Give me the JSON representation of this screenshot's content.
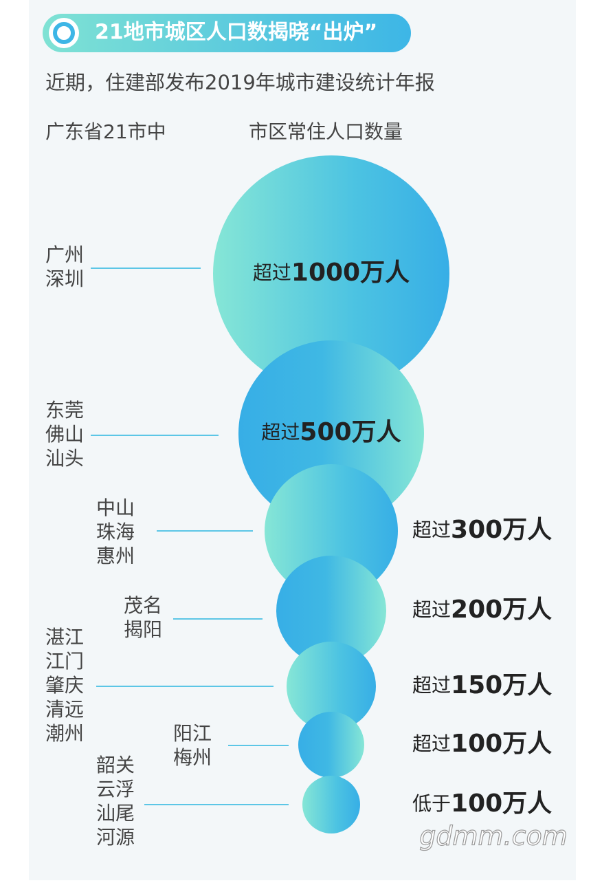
{
  "header": {
    "title": "21地市城区人口数揭晓“出炉”",
    "intro": "近期，住建部发布2019年城市建设统计年报",
    "left_heading": "广东省21市中",
    "right_heading": "市区常住人口数量"
  },
  "tiers": [
    {
      "cities": [
        "广州",
        "深圳"
      ],
      "prefix": "超过",
      "amount": "1000万人"
    },
    {
      "cities": [
        "东莞",
        "佛山",
        "汕头"
      ],
      "prefix": "超过",
      "amount": "500万人"
    },
    {
      "cities": [
        "中山",
        "珠海",
        "惠州"
      ],
      "prefix": "超过",
      "amount": "300万人"
    },
    {
      "cities": [
        "茂名",
        "揭阳"
      ],
      "prefix": "超过",
      "amount": "200万人"
    },
    {
      "cities": [
        "湛江",
        "江门",
        "肇庆",
        "清远",
        "潮州"
      ],
      "prefix": "超过",
      "amount": "150万人"
    },
    {
      "cities": [
        "阳江",
        "梅州"
      ],
      "prefix": "超过",
      "amount": "100万人"
    },
    {
      "cities": [
        "韶关",
        "云浮",
        "汕尾",
        "河源"
      ],
      "prefix": "低于",
      "amount": "100万人"
    }
  ],
  "watermark": "gdmm.com"
}
